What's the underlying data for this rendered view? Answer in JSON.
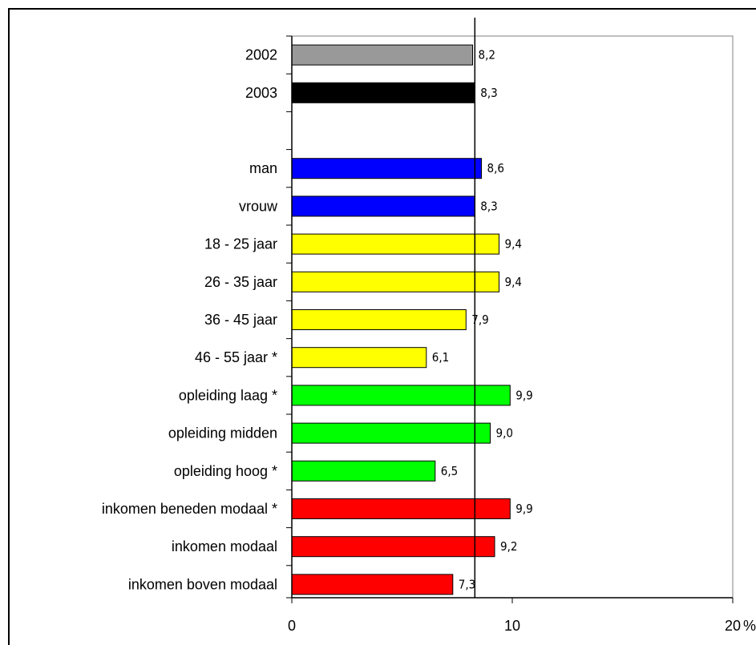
{
  "chart_data": {
    "type": "bar",
    "orientation": "horizontal",
    "categories": [
      "2002",
      "2003",
      "",
      "man",
      "vrouw",
      "18 - 25 jaar",
      "26 - 35 jaar",
      "36 - 45 jaar",
      "46 - 55 jaar   *",
      "opleiding laag  *",
      "opleiding midden",
      "opleiding hoog *",
      "inkomen beneden modaal  *",
      "inkomen modaal",
      "inkomen boven modaal"
    ],
    "values": [
      8.2,
      8.3,
      null,
      8.6,
      8.3,
      9.4,
      9.4,
      7.9,
      6.1,
      9.9,
      9.0,
      6.5,
      9.9,
      9.2,
      7.3
    ],
    "value_labels": [
      "8,2",
      "8,3",
      "",
      "8,6",
      "8,3",
      "9,4",
      "9,4",
      "7,9",
      "6,1",
      "9,9",
      "9,0",
      "6,5",
      "9,9",
      "9,2",
      "7,3"
    ],
    "bar_colors": [
      "#999999",
      "#000000",
      "",
      "#0000ff",
      "#0000ff",
      "#ffff00",
      "#ffff00",
      "#ffff00",
      "#ffff00",
      "#00ff00",
      "#00ff00",
      "#00ff00",
      "#ff0000",
      "#ff0000",
      "#ff0000"
    ],
    "reference_line": 8.3,
    "xlim": [
      0,
      20
    ],
    "x_ticks": [
      "0",
      "10",
      "20"
    ],
    "x_unit": "%",
    "title": "",
    "xlabel": "",
    "ylabel": "",
    "grid": false,
    "legend": "none"
  }
}
